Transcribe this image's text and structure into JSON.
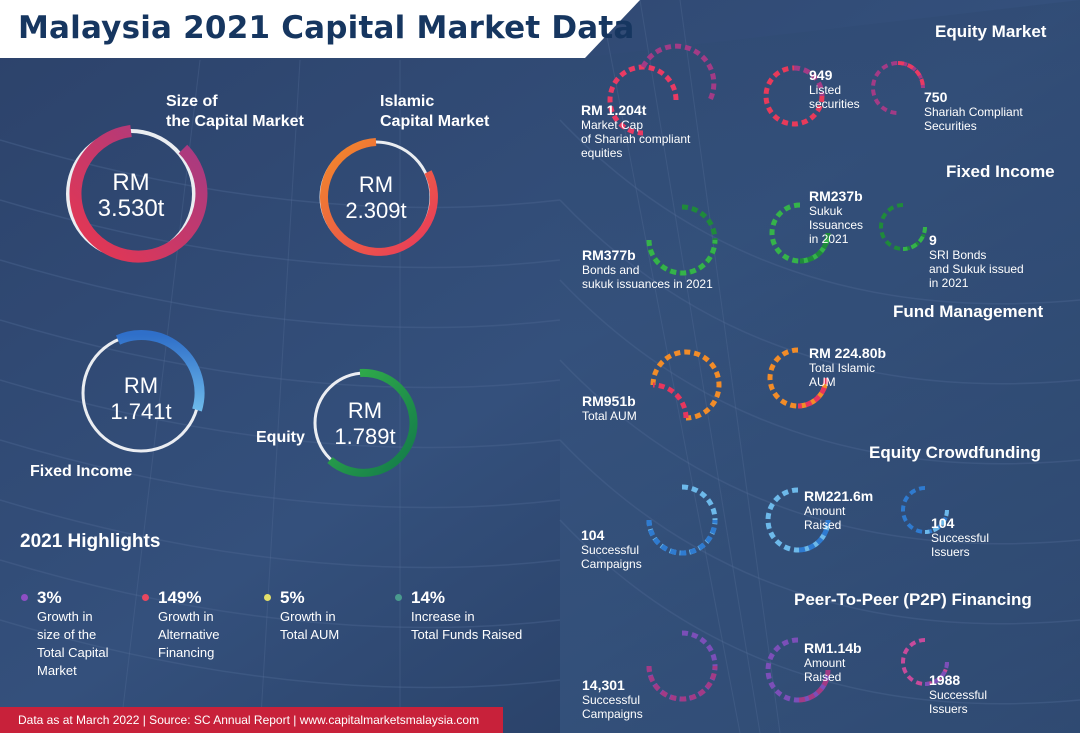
{
  "title": "Malaysia 2021 Capital Market Data",
  "rings": {
    "size": {
      "label_l1": "Size of",
      "label_l2": "the Capital Market",
      "val_l1": "RM",
      "val_l2": "3.530t"
    },
    "islamic": {
      "label_l1": "Islamic",
      "label_l2": "Capital Market",
      "val_l1": "RM",
      "val_l2": "2.309t"
    },
    "fixed": {
      "label": "Fixed Income",
      "val_l1": "RM",
      "val_l2": "1.741t"
    },
    "equity": {
      "label": "Equity",
      "val_l1": "RM",
      "val_l2": "1.789t"
    }
  },
  "highlights": {
    "heading": "2021  Highlights",
    "items": [
      {
        "pct": "3%",
        "l1": "Growth in",
        "l2": "size of the",
        "l3": "Total Capital",
        "l4": "Market",
        "color": "#8e4fc4"
      },
      {
        "pct": "149%",
        "l1": "Growth in",
        "l2": "Alternative",
        "l3": "Financing",
        "l4": "",
        "color": "#e8475f"
      },
      {
        "pct": "5%",
        "l1": "Growth in",
        "l2": "Total AUM",
        "l3": "",
        "l4": "",
        "color": "#e3df6a"
      },
      {
        "pct": "14%",
        "l1": "Increase in",
        "l2": "Total Funds Raised",
        "l3": "",
        "l4": "",
        "color": "#4a9b8e"
      }
    ]
  },
  "equity_market": {
    "heading": "Equity Market",
    "a": {
      "val": "RM 1.204t",
      "l1": "Market Cap",
      "l2": "of Shariah compliant",
      "l3": "equities"
    },
    "b": {
      "val": "949",
      "l1": "Listed",
      "l2": "securities"
    },
    "c": {
      "val": "750",
      "l1": "Shariah Compliant",
      "l2": "Securities"
    }
  },
  "fixed_income": {
    "heading": "Fixed Income",
    "a": {
      "val": "RM377b",
      "l1": "Bonds and",
      "l2": "sukuk issuances in 2021"
    },
    "b": {
      "val": "RM237b",
      "l1": "Sukuk",
      "l2": "Issuances",
      "l3": "in 2021"
    },
    "c": {
      "val": "9",
      "l1": "SRI Bonds",
      "l2": "and Sukuk issued",
      "l3": "in 2021"
    }
  },
  "fund_management": {
    "heading": "Fund Management",
    "a": {
      "val": "RM951b",
      "l1": "Total AUM"
    },
    "b": {
      "val": "RM 224.80b",
      "l1": "Total Islamic",
      "l2": "AUM"
    }
  },
  "ecf": {
    "heading": "Equity Crowdfunding",
    "a": {
      "val": "104",
      "l1": "Successful",
      "l2": "Campaigns"
    },
    "b": {
      "val": "RM221.6m",
      "l1": "Amount",
      "l2": "Raised"
    },
    "c": {
      "val": "104",
      "l1": "Successful",
      "l2": "Issuers"
    }
  },
  "p2p": {
    "heading": "Peer-To-Peer (P2P) Financing",
    "a": {
      "val": "14,301",
      "l1": "Successful",
      "l2": "Campaigns"
    },
    "b": {
      "val": "RM1.14b",
      "l1": "Amount",
      "l2": "Raised"
    },
    "c": {
      "val": "1988",
      "l1": "Successful",
      "l2": "Issuers"
    }
  },
  "footer": "Data as at March 2022 | Source: SC Annual Report | www.capitalmarketsmalaysia.com"
}
